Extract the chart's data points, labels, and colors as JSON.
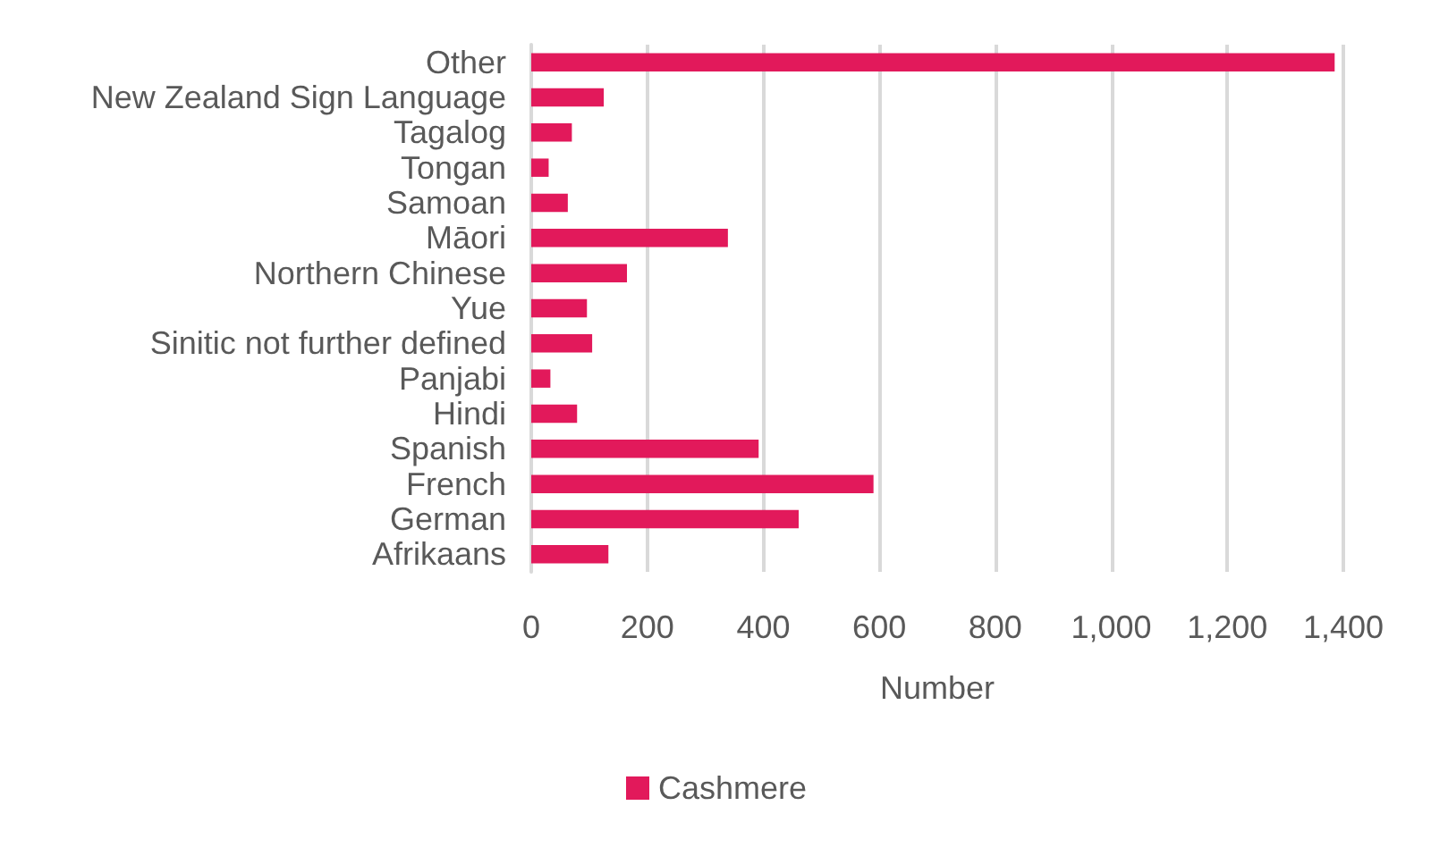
{
  "chart_data": {
    "type": "bar",
    "orientation": "horizontal",
    "xlabel": "Number",
    "categories": [
      "Other",
      "New Zealand Sign Language",
      "Tagalog",
      "Tongan",
      "Samoan",
      "Māori",
      "Northern Chinese",
      "Yue",
      "Sinitic not further defined",
      "Panjabi",
      "Hindi",
      "Spanish",
      "French",
      "German",
      "Afrikaans"
    ],
    "series": [
      {
        "name": "Cashmere",
        "color": "#e2195b",
        "values": [
          1385,
          125,
          70,
          30,
          63,
          339,
          165,
          96,
          105,
          33,
          79,
          392,
          590,
          461,
          133
        ]
      }
    ],
    "xlim": [
      0,
      1400
    ],
    "xticks": [
      0,
      200,
      400,
      600,
      800,
      {
        "value": 1000,
        "label": "1,000"
      },
      {
        "value": 1200,
        "label": "1,200"
      },
      {
        "value": 1400,
        "label": "1,400"
      }
    ],
    "grid": "x",
    "legend": "bottom"
  }
}
